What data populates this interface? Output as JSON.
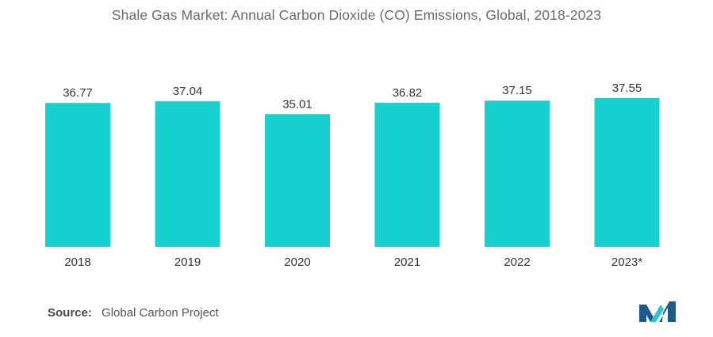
{
  "title": "Shale Gas Market: Annual Carbon Dioxide (CO) Emissions, Global, 2018-2023",
  "chart_data": {
    "type": "bar",
    "title": "Shale Gas Market: Annual Carbon Dioxide (CO) Emissions, Global, 2018-2023",
    "categories": [
      "2018",
      "2019",
      "2020",
      "2021",
      "2022",
      "2023*"
    ],
    "values": [
      36.77,
      37.04,
      35.01,
      36.82,
      37.15,
      37.55
    ],
    "value_labels": [
      "36.77",
      "37.04",
      "35.01",
      "36.82",
      "37.15",
      "37.55"
    ],
    "xlabel": "",
    "ylabel": "",
    "ylim": [
      0,
      37.55
    ],
    "grid": false,
    "legend": "none",
    "bar_color": "#17D0D0"
  },
  "source": {
    "label": "Source:",
    "text": "Global Carbon Project"
  },
  "colors": {
    "bar": "#17D0D0",
    "logo_dark": "#1f5b8a",
    "logo_light": "#2ec4cc"
  },
  "logo": {
    "icon": "mordor-intelligence-logo-icon"
  }
}
